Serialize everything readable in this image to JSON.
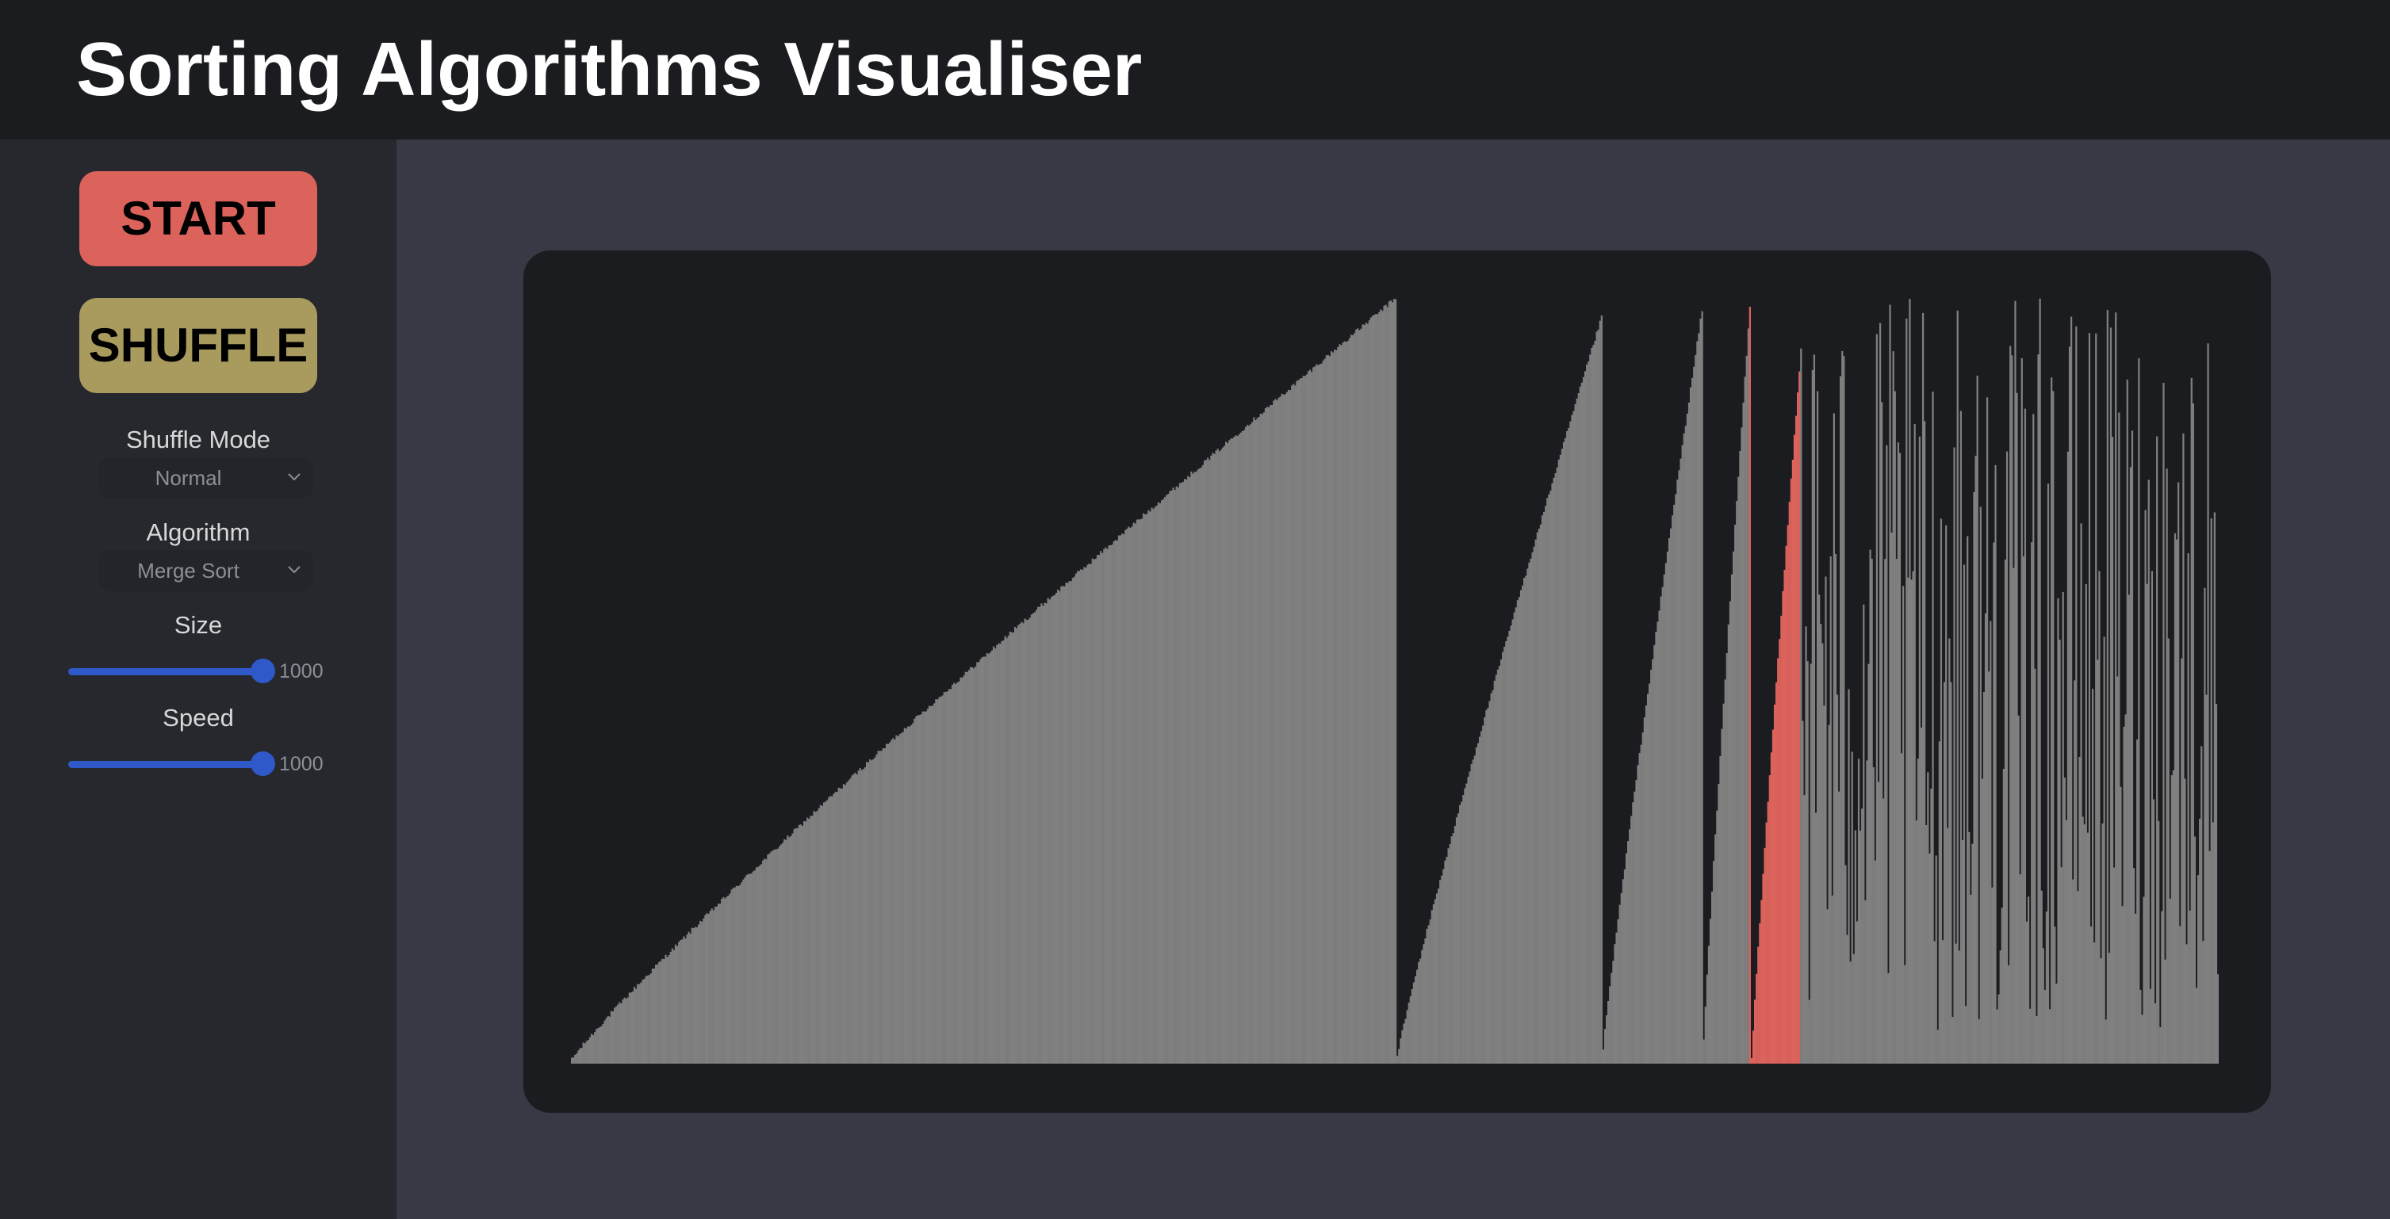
{
  "app": {
    "title": "Sorting Algorithms Visualiser"
  },
  "controls": {
    "start_label": "START",
    "shuffle_label": "SHUFFLE",
    "shuffle_mode": {
      "label": "Shuffle Mode",
      "value": "Normal"
    },
    "algorithm": {
      "label": "Algorithm",
      "value": "Merge Sort"
    },
    "size": {
      "label": "Size",
      "value": "1000",
      "fraction": 1.0
    },
    "speed": {
      "label": "Speed",
      "value": "1000",
      "fraction": 1.0
    }
  },
  "colors": {
    "header_bg": "#1b1c20",
    "sidebar_bg": "#26282e",
    "main_bg": "#373a44",
    "panel_bg": "#1b1c20",
    "start_button": "#dc625c",
    "shuffle_button": "#a99a5d",
    "slider_accent": "#2f59c9",
    "bar_default": "#808080",
    "bar_highlight": "#dc625c"
  },
  "icons": {
    "shuffle_mode_dropdown": "chevron-down-icon",
    "algorithm_dropdown": "chevron-down-icon"
  },
  "visualization": {
    "array_size": 1000,
    "max_value": 1000,
    "highlight_range": [
      715,
      745
    ],
    "segments": [
      {
        "start": 0,
        "end": 500,
        "type": "sorted",
        "low": 5,
        "high": 1000
      },
      {
        "start": 501,
        "end": 625,
        "type": "sorted",
        "low": 10,
        "high": 975
      },
      {
        "start": 626,
        "end": 686,
        "type": "sorted",
        "low": 20,
        "high": 985
      },
      {
        "start": 687,
        "end": 715,
        "type": "sorted",
        "low": 30,
        "high": 990
      },
      {
        "start": 716,
        "end": 746,
        "type": "sorted",
        "low": 5,
        "high": 935
      },
      {
        "start": 747,
        "end": 999,
        "type": "unsorted"
      }
    ]
  }
}
